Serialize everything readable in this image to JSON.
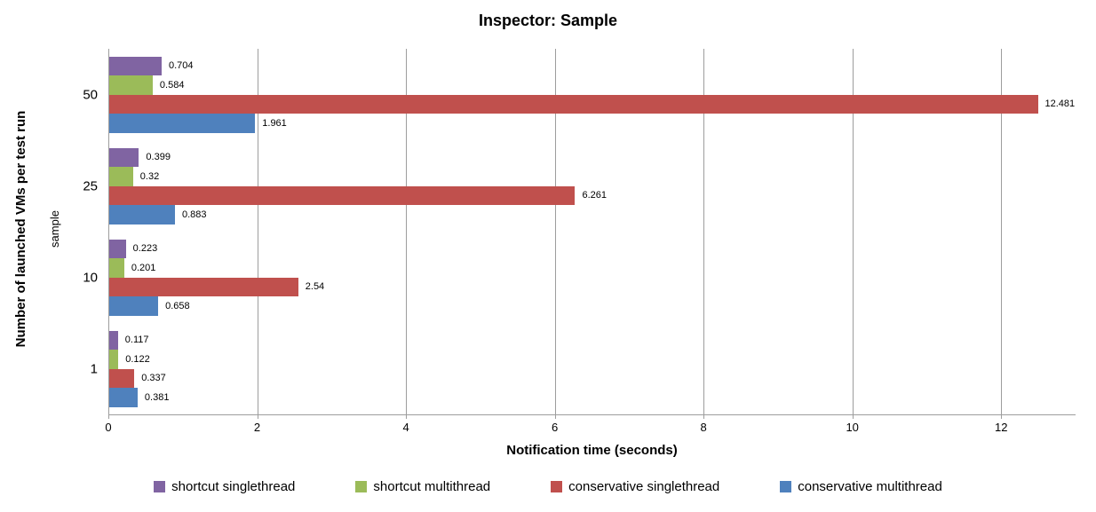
{
  "title": "Inspector: Sample",
  "chart_data": {
    "type": "bar",
    "orientation": "horizontal",
    "title": "Inspector: Sample",
    "xlabel": "Notification time (seconds)",
    "ylabel": "Number of launched VMs per test run",
    "ylabel_secondary": "sample",
    "categories": [
      "50",
      "25",
      "10",
      "1"
    ],
    "series": [
      {
        "name": "shortcut singlethread",
        "color": "#8064A2",
        "values": [
          0.704,
          0.399,
          0.223,
          0.117
        ],
        "labels": [
          "0.704",
          "0.399",
          "0.223",
          "0.117"
        ]
      },
      {
        "name": "shortcut multithread",
        "color": "#9BBB59",
        "values": [
          0.584,
          0.32,
          0.201,
          0.122
        ],
        "labels": [
          "0.584",
          "0.32",
          "0.201",
          "0.122"
        ]
      },
      {
        "name": "conservative singlethread",
        "color": "#C0504D",
        "values": [
          12.481,
          6.261,
          2.54,
          0.337
        ],
        "labels": [
          "12.481",
          "6.261",
          "2.54",
          "0.337"
        ]
      },
      {
        "name": "conservative multithread",
        "color": "#4F81BD",
        "values": [
          1.961,
          0.883,
          0.658,
          0.381
        ],
        "labels": [
          "1.961",
          "0.883",
          "0.658",
          "0.381"
        ]
      }
    ],
    "xlim": [
      0,
      13
    ],
    "x_ticks": [
      "0",
      "2",
      "4",
      "6",
      "8",
      "10",
      "12"
    ],
    "grid": "vertical",
    "legend_position": "bottom",
    "value_labels": true
  },
  "colors": {
    "gridline": "#9d9d9d",
    "axis_line": "#9d9d9d",
    "text": "#000000",
    "background": "#ffffff"
  }
}
